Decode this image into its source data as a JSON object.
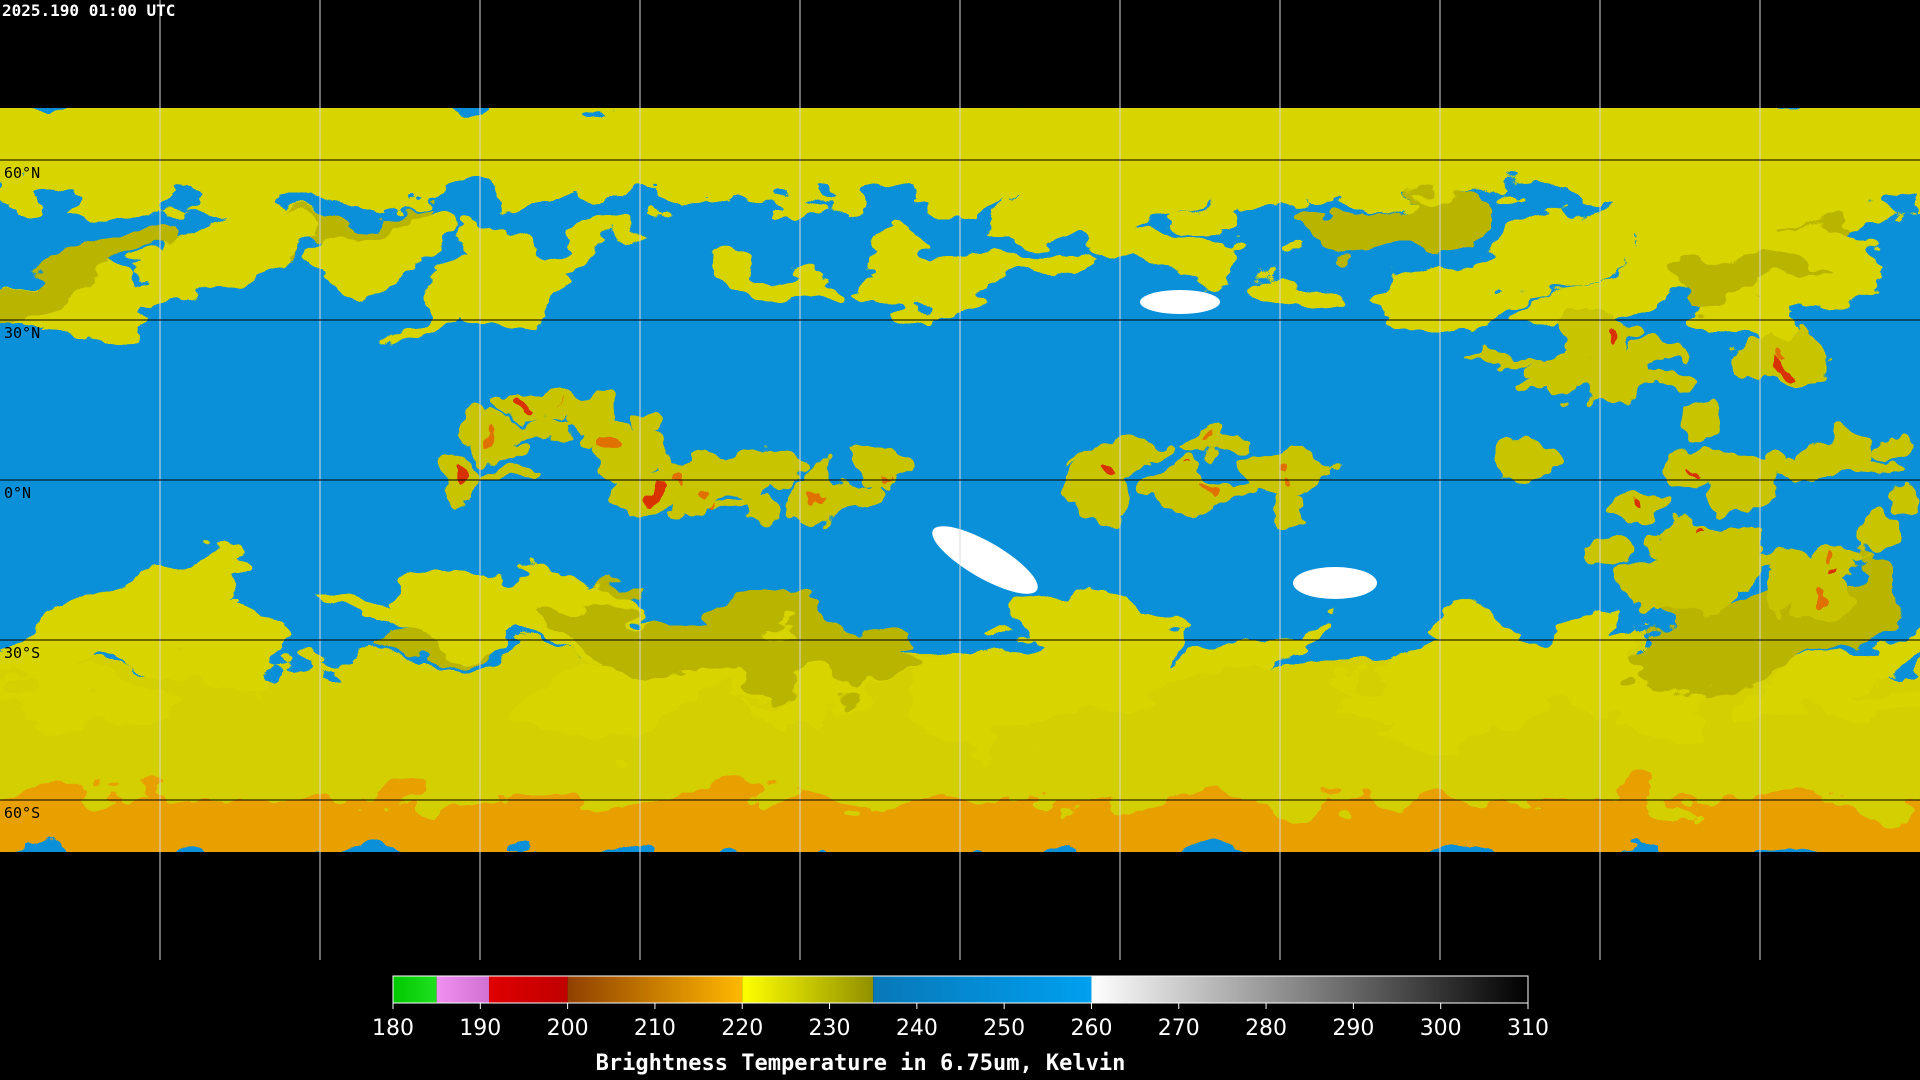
{
  "header": {
    "timestamp": "2025.190 01:00 UTC"
  },
  "map": {
    "latitude_labels": [
      "60°N",
      "30°N",
      "0°N",
      "30°S",
      "60°S"
    ]
  },
  "colorbar": {
    "title": "Brightness Temperature in 6.75um, Kelvin",
    "range": [
      180,
      310
    ],
    "ticks": [
      180,
      190,
      200,
      210,
      220,
      230,
      240,
      250,
      260,
      270,
      280,
      290,
      300,
      310
    ],
    "segments": [
      {
        "from": 180,
        "to": 185,
        "colors": [
          "#00c800",
          "#20e020"
        ]
      },
      {
        "from": 185,
        "to": 191,
        "colors": [
          "#f090f0",
          "#d070d0"
        ]
      },
      {
        "from": 191,
        "to": 200,
        "colors": [
          "#e00000",
          "#c00000"
        ]
      },
      {
        "from": 200,
        "to": 220,
        "colors": [
          "#904000",
          "#ffb800"
        ]
      },
      {
        "from": 220,
        "to": 235,
        "colors": [
          "#ffff00",
          "#909000"
        ]
      },
      {
        "from": 235,
        "to": 260,
        "colors": [
          "#0878b8",
          "#00a0f0"
        ]
      },
      {
        "from": 260,
        "to": 310,
        "colors": [
          "#ffffff",
          "#000000"
        ]
      }
    ]
  }
}
